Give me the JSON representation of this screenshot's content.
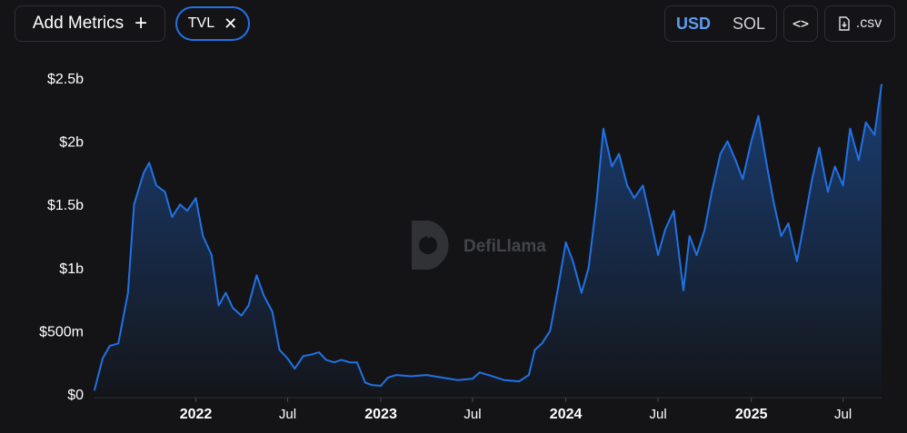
{
  "toolbar": {
    "add_metrics_label": "Add Metrics",
    "metric_pill_label": "TVL",
    "currency_options": [
      "USD",
      "SOL"
    ],
    "currency_selected": "USD",
    "embed_icon": "code-icon",
    "csv_label": ".csv",
    "csv_icon": "download-file-icon"
  },
  "watermark": {
    "text": "DefiLlama",
    "icon": "llama-logo-icon"
  },
  "colors": {
    "line": "#2172e5",
    "background": "#141417",
    "accent": "#5c9cf5"
  },
  "chart_data": {
    "type": "area",
    "ylim": [
      0,
      2500000000
    ],
    "y_ticks": [
      0,
      500000000,
      1000000000,
      1500000000,
      2000000000,
      2500000000
    ],
    "y_tick_labels": [
      "$0",
      "$500m",
      "$1b",
      "$1.5b",
      "$2b",
      "$2.5b"
    ],
    "x_range": [
      "2021-06-15",
      "2025-09-15"
    ],
    "x_ticks": [
      {
        "date": "2022-01-01",
        "label": "2022",
        "bold": true
      },
      {
        "date": "2022-07-01",
        "label": "Jul",
        "bold": false
      },
      {
        "date": "2023-01-01",
        "label": "2023",
        "bold": true
      },
      {
        "date": "2023-07-01",
        "label": "Jul",
        "bold": false
      },
      {
        "date": "2024-01-01",
        "label": "2024",
        "bold": true
      },
      {
        "date": "2024-07-01",
        "label": "Jul",
        "bold": false
      },
      {
        "date": "2025-01-01",
        "label": "2025",
        "bold": true
      },
      {
        "date": "2025-07-01",
        "label": "Jul",
        "bold": false
      }
    ],
    "grid": false,
    "series": [
      {
        "points": [
          [
            "2021-06-15",
            30000000
          ],
          [
            "2021-07-01",
            280000000
          ],
          [
            "2021-07-15",
            380000000
          ],
          [
            "2021-08-01",
            400000000
          ],
          [
            "2021-08-20",
            800000000
          ],
          [
            "2021-09-01",
            1500000000
          ],
          [
            "2021-09-20",
            1750000000
          ],
          [
            "2021-10-01",
            1830000000
          ],
          [
            "2021-10-15",
            1650000000
          ],
          [
            "2021-11-01",
            1600000000
          ],
          [
            "2021-11-15",
            1400000000
          ],
          [
            "2021-12-01",
            1500000000
          ],
          [
            "2021-12-15",
            1450000000
          ],
          [
            "2022-01-01",
            1550000000
          ],
          [
            "2022-01-15",
            1250000000
          ],
          [
            "2022-02-01",
            1100000000
          ],
          [
            "2022-02-15",
            700000000
          ],
          [
            "2022-03-01",
            800000000
          ],
          [
            "2022-03-15",
            680000000
          ],
          [
            "2022-04-01",
            620000000
          ],
          [
            "2022-04-15",
            700000000
          ],
          [
            "2022-05-01",
            940000000
          ],
          [
            "2022-05-15",
            780000000
          ],
          [
            "2022-06-01",
            650000000
          ],
          [
            "2022-06-15",
            350000000
          ],
          [
            "2022-07-01",
            280000000
          ],
          [
            "2022-07-15",
            200000000
          ],
          [
            "2022-08-01",
            300000000
          ],
          [
            "2022-08-15",
            310000000
          ],
          [
            "2022-09-01",
            330000000
          ],
          [
            "2022-09-15",
            270000000
          ],
          [
            "2022-10-01",
            250000000
          ],
          [
            "2022-10-15",
            270000000
          ],
          [
            "2022-11-01",
            250000000
          ],
          [
            "2022-11-15",
            250000000
          ],
          [
            "2022-12-01",
            90000000
          ],
          [
            "2022-12-15",
            70000000
          ],
          [
            "2023-01-01",
            65000000
          ],
          [
            "2023-01-15",
            130000000
          ],
          [
            "2023-02-01",
            150000000
          ],
          [
            "2023-03-01",
            140000000
          ],
          [
            "2023-04-01",
            150000000
          ],
          [
            "2023-05-01",
            130000000
          ],
          [
            "2023-06-01",
            110000000
          ],
          [
            "2023-07-01",
            120000000
          ],
          [
            "2023-07-15",
            170000000
          ],
          [
            "2023-08-01",
            150000000
          ],
          [
            "2023-09-01",
            110000000
          ],
          [
            "2023-10-01",
            100000000
          ],
          [
            "2023-10-20",
            150000000
          ],
          [
            "2023-11-01",
            350000000
          ],
          [
            "2023-11-15",
            400000000
          ],
          [
            "2023-12-01",
            500000000
          ],
          [
            "2023-12-15",
            800000000
          ],
          [
            "2024-01-01",
            1200000000
          ],
          [
            "2024-01-15",
            1050000000
          ],
          [
            "2024-02-01",
            800000000
          ],
          [
            "2024-02-15",
            1000000000
          ],
          [
            "2024-03-01",
            1500000000
          ],
          [
            "2024-03-15",
            2100000000
          ],
          [
            "2024-04-01",
            1800000000
          ],
          [
            "2024-04-15",
            1900000000
          ],
          [
            "2024-05-01",
            1650000000
          ],
          [
            "2024-05-15",
            1550000000
          ],
          [
            "2024-06-01",
            1650000000
          ],
          [
            "2024-06-15",
            1400000000
          ],
          [
            "2024-07-01",
            1100000000
          ],
          [
            "2024-07-15",
            1300000000
          ],
          [
            "2024-08-01",
            1450000000
          ],
          [
            "2024-08-10",
            1150000000
          ],
          [
            "2024-08-20",
            820000000
          ],
          [
            "2024-09-01",
            1250000000
          ],
          [
            "2024-09-15",
            1100000000
          ],
          [
            "2024-10-01",
            1300000000
          ],
          [
            "2024-10-15",
            1600000000
          ],
          [
            "2024-11-01",
            1900000000
          ],
          [
            "2024-11-15",
            2000000000
          ],
          [
            "2024-12-01",
            1850000000
          ],
          [
            "2024-12-15",
            1700000000
          ],
          [
            "2025-01-01",
            2000000000
          ],
          [
            "2025-01-15",
            2200000000
          ],
          [
            "2025-02-01",
            1800000000
          ],
          [
            "2025-02-15",
            1500000000
          ],
          [
            "2025-03-01",
            1250000000
          ],
          [
            "2025-03-15",
            1350000000
          ],
          [
            "2025-04-01",
            1050000000
          ],
          [
            "2025-04-15",
            1350000000
          ],
          [
            "2025-05-01",
            1700000000
          ],
          [
            "2025-05-15",
            1950000000
          ],
          [
            "2025-06-01",
            1600000000
          ],
          [
            "2025-06-15",
            1800000000
          ],
          [
            "2025-07-01",
            1650000000
          ],
          [
            "2025-07-15",
            2100000000
          ],
          [
            "2025-08-01",
            1850000000
          ],
          [
            "2025-08-15",
            2150000000
          ],
          [
            "2025-09-01",
            2050000000
          ],
          [
            "2025-09-15",
            2450000000
          ]
        ]
      }
    ]
  }
}
